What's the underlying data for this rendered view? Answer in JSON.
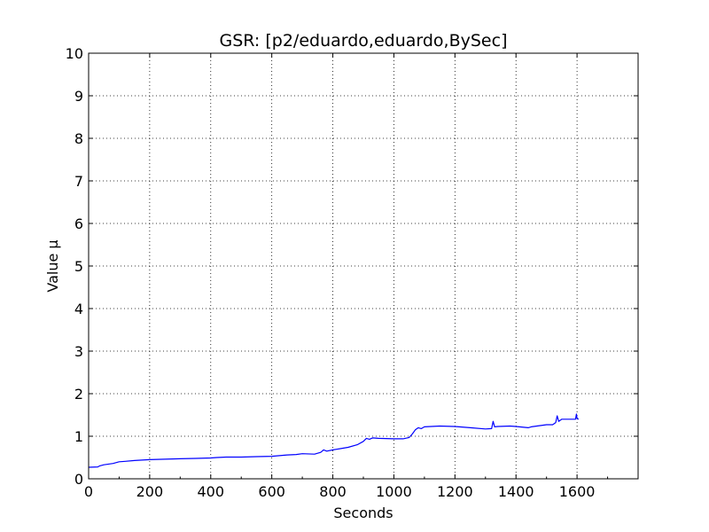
{
  "chart_data": {
    "type": "line",
    "title": "GSR: [p2/eduardo,eduardo,BySec]",
    "xlabel": "Seconds",
    "ylabel": "Value µ",
    "xlim": [
      0,
      1800
    ],
    "ylim": [
      0,
      10
    ],
    "xticks": [
      0,
      200,
      400,
      600,
      800,
      1000,
      1200,
      1400,
      1600
    ],
    "yticks": [
      0,
      1,
      2,
      3,
      4,
      5,
      6,
      7,
      8,
      9,
      10
    ],
    "grid": true,
    "series": [
      {
        "color": "#0000ff",
        "x": [
          0,
          30,
          35,
          50,
          80,
          100,
          120,
          150,
          200,
          250,
          300,
          350,
          400,
          420,
          450,
          500,
          550,
          600,
          650,
          680,
          700,
          740,
          760,
          770,
          780,
          800,
          850,
          880,
          900,
          910,
          920,
          930,
          950,
          1000,
          1030,
          1050,
          1060,
          1070,
          1080,
          1090,
          1100,
          1150,
          1200,
          1250,
          1300,
          1320,
          1325,
          1330,
          1340,
          1380,
          1400,
          1440,
          1450,
          1500,
          1520,
          1530,
          1535,
          1540,
          1550,
          1580,
          1595,
          1598,
          1600,
          1605
        ],
        "y": [
          0.27,
          0.28,
          0.3,
          0.33,
          0.36,
          0.4,
          0.41,
          0.43,
          0.45,
          0.46,
          0.47,
          0.48,
          0.49,
          0.5,
          0.51,
          0.51,
          0.52,
          0.53,
          0.56,
          0.57,
          0.59,
          0.58,
          0.62,
          0.68,
          0.65,
          0.68,
          0.74,
          0.8,
          0.88,
          0.95,
          0.93,
          0.96,
          0.95,
          0.94,
          0.94,
          0.97,
          1.05,
          1.15,
          1.2,
          1.18,
          1.22,
          1.24,
          1.23,
          1.2,
          1.17,
          1.18,
          1.35,
          1.22,
          1.23,
          1.24,
          1.23,
          1.2,
          1.22,
          1.27,
          1.27,
          1.32,
          1.48,
          1.35,
          1.4,
          1.4,
          1.4,
          1.52,
          1.42,
          1.4
        ]
      }
    ]
  }
}
